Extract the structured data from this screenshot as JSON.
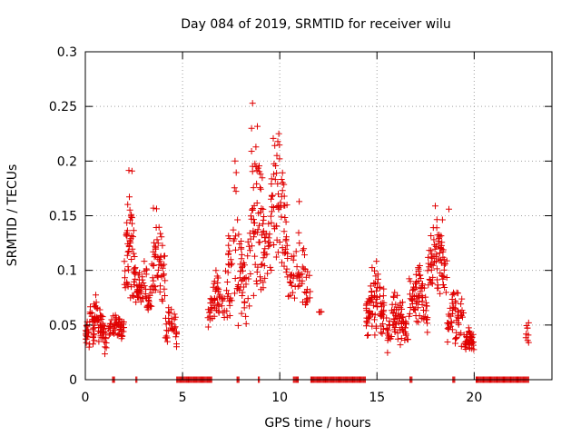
{
  "chart_data": {
    "type": "scatter",
    "title": "Day 084 of 2019, SRMTID for receiver wilu",
    "xlabel": "GPS time / hours",
    "ylabel": "SRMTID / TECUs",
    "xlim": [
      0,
      24
    ],
    "ylim": [
      0,
      0.3
    ],
    "xticks": [
      0,
      5,
      10,
      15,
      20
    ],
    "xtick_labels": [
      "0",
      "5",
      "10",
      "15",
      "20"
    ],
    "yticks": [
      0,
      0.05,
      0.1,
      0.15,
      0.2,
      0.25,
      0.3
    ],
    "ytick_labels": [
      "0",
      "0.05",
      "0.1",
      "0.15",
      "0.2",
      "0.25",
      "0.3"
    ],
    "grid": true,
    "marker": "+",
    "color": "#e00000",
    "segments": [
      {
        "x0": 0.0,
        "x1": 1.1,
        "base": 0.04,
        "amp": 0.025,
        "spread": 0.03,
        "n": 90
      },
      {
        "x0": 1.1,
        "x1": 2.0,
        "base": 0.045,
        "amp": 0.015,
        "spread": 0.02,
        "n": 55
      },
      {
        "x0": 2.0,
        "x1": 2.6,
        "base": 0.085,
        "amp": 0.09,
        "spread": 0.06,
        "n": 60
      },
      {
        "x0": 2.6,
        "x1": 3.4,
        "base": 0.07,
        "amp": 0.03,
        "spread": 0.035,
        "n": 55
      },
      {
        "x0": 3.4,
        "x1": 4.1,
        "base": 0.085,
        "amp": 0.06,
        "spread": 0.05,
        "n": 55
      },
      {
        "x0": 4.1,
        "x1": 4.7,
        "base": 0.045,
        "amp": 0.02,
        "spread": 0.03,
        "n": 35
      },
      {
        "x0": 6.3,
        "x1": 7.2,
        "base": 0.06,
        "amp": 0.03,
        "spread": 0.03,
        "n": 55
      },
      {
        "x0": 7.2,
        "x1": 8.3,
        "base": 0.07,
        "amp": 0.09,
        "spread": 0.06,
        "n": 75
      },
      {
        "x0": 8.3,
        "x1": 9.3,
        "base": 0.1,
        "amp": 0.12,
        "spread": 0.07,
        "n": 80
      },
      {
        "x0": 9.3,
        "x1": 10.4,
        "base": 0.11,
        "amp": 0.1,
        "spread": 0.07,
        "n": 80
      },
      {
        "x0": 10.4,
        "x1": 11.6,
        "base": 0.075,
        "amp": 0.05,
        "spread": 0.04,
        "n": 55
      },
      {
        "x0": 12.0,
        "x1": 12.2,
        "base": 0.062,
        "amp": 0.0,
        "spread": 0.006,
        "n": 4
      },
      {
        "x0": 14.4,
        "x1": 15.5,
        "base": 0.055,
        "amp": 0.04,
        "spread": 0.04,
        "n": 85
      },
      {
        "x0": 15.5,
        "x1": 16.6,
        "base": 0.04,
        "amp": 0.03,
        "spread": 0.035,
        "n": 80
      },
      {
        "x0": 16.6,
        "x1": 17.6,
        "base": 0.06,
        "amp": 0.04,
        "spread": 0.04,
        "n": 75
      },
      {
        "x0": 17.6,
        "x1": 18.6,
        "base": 0.09,
        "amp": 0.06,
        "spread": 0.05,
        "n": 75
      },
      {
        "x0": 18.6,
        "x1": 19.5,
        "base": 0.045,
        "amp": 0.03,
        "spread": 0.035,
        "n": 55
      },
      {
        "x0": 19.5,
        "x1": 20.0,
        "base": 0.03,
        "amp": 0.015,
        "spread": 0.02,
        "n": 40
      },
      {
        "x0": 22.6,
        "x1": 22.8,
        "base": 0.04,
        "amp": 0.01,
        "spread": 0.01,
        "n": 6
      }
    ],
    "zero_runs": [
      [
        1.4,
        1.5
      ],
      [
        2.6,
        2.65
      ],
      [
        4.7,
        6.5
      ],
      [
        7.8,
        7.9
      ],
      [
        8.9,
        8.95
      ],
      [
        10.7,
        10.95
      ],
      [
        11.6,
        14.4
      ],
      [
        16.7,
        16.8
      ],
      [
        18.9,
        19.0
      ],
      [
        20.1,
        22.8
      ]
    ],
    "outliers": [
      {
        "x": 8.6,
        "y": 0.253
      },
      {
        "x": 8.55,
        "y": 0.23
      },
      {
        "x": 9.95,
        "y": 0.225
      },
      {
        "x": 9.9,
        "y": 0.218
      },
      {
        "x": 9.85,
        "y": 0.205
      },
      {
        "x": 7.7,
        "y": 0.2
      },
      {
        "x": 8.55,
        "y": 0.209
      },
      {
        "x": 2.4,
        "y": 0.191
      },
      {
        "x": 11.0,
        "y": 0.163
      },
      {
        "x": 18.7,
        "y": 0.156
      },
      {
        "x": 18.0,
        "y": 0.159
      },
      {
        "x": 3.5,
        "y": 0.157
      },
      {
        "x": 22.8,
        "y": 0.052
      },
      {
        "x": 22.8,
        "y": 0.034
      },
      {
        "x": 22.75,
        "y": 0.036
      }
    ]
  }
}
